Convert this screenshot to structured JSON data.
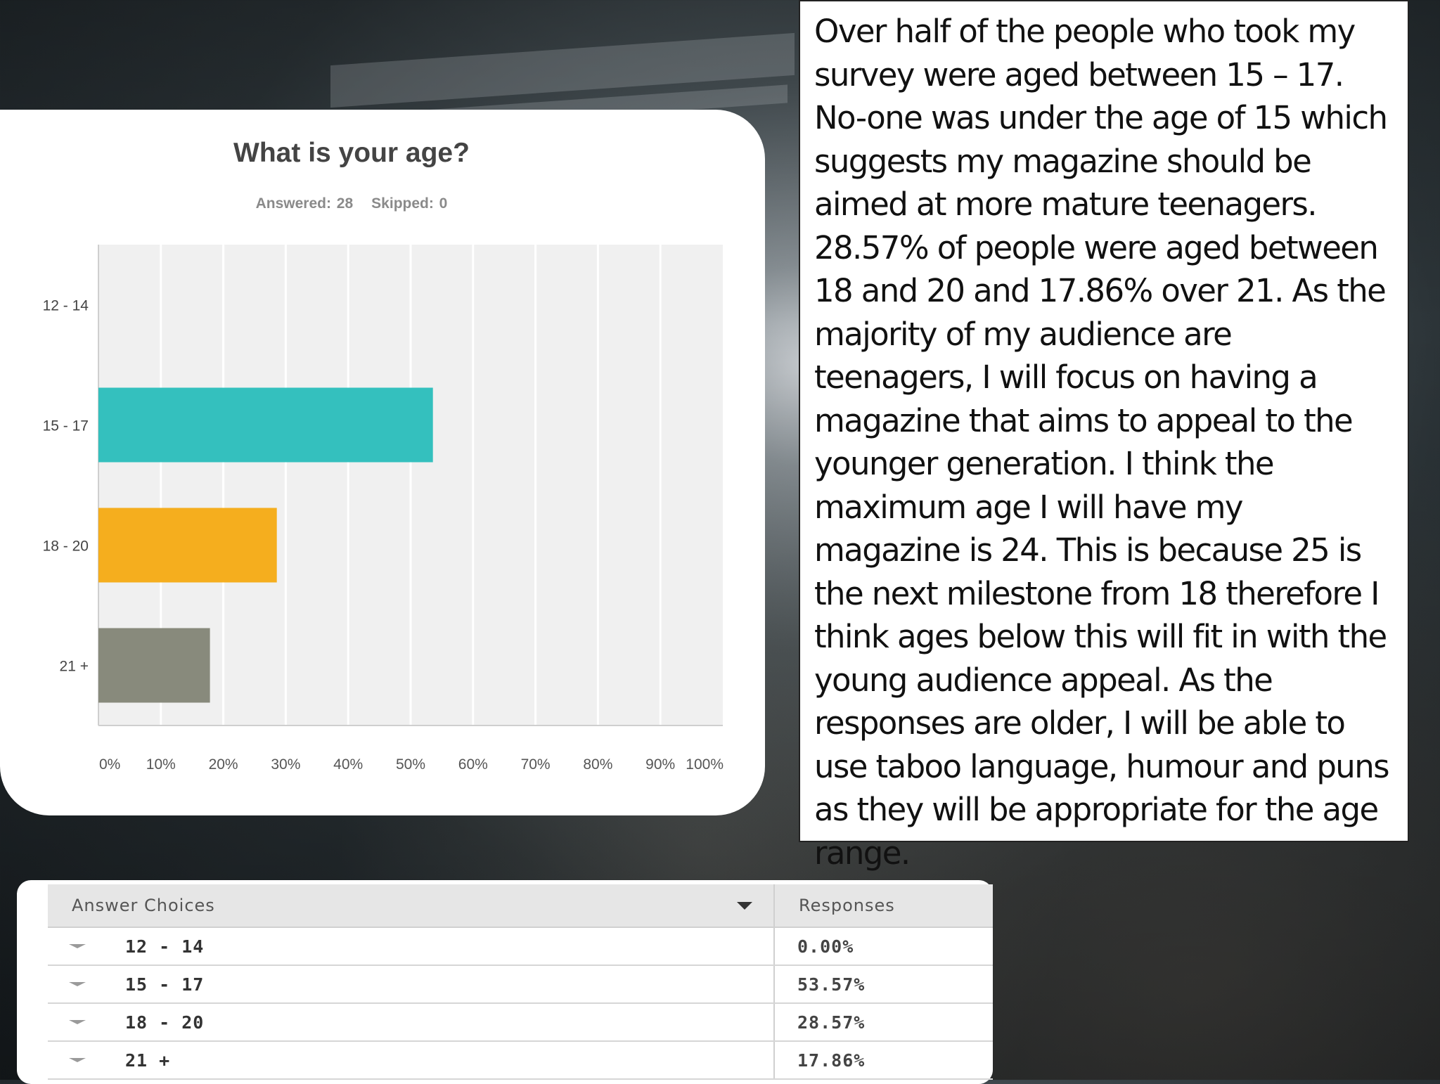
{
  "chart_data": {
    "type": "bar",
    "orientation": "horizontal",
    "title": "What is your age?",
    "subtitle": {
      "answered": "Answered: 28",
      "skipped": "Skipped: 0"
    },
    "categories": [
      "12 - 14",
      "15 - 17",
      "18 - 20",
      "21 +"
    ],
    "values": [
      0.0,
      53.57,
      28.57,
      17.86
    ],
    "colors": [
      "#34c0be",
      "#34c0be",
      "#f5ae1e",
      "#888a7c"
    ],
    "xlim": [
      0,
      100
    ],
    "x_ticks": [
      "0%",
      "10%",
      "20%",
      "30%",
      "40%",
      "50%",
      "60%",
      "70%",
      "80%",
      "90%",
      "100%"
    ],
    "grid": true
  },
  "text_box": {
    "body": "Over half of the people who took my survey were aged between 15 – 17. No-one was under the age of 15 which suggests my magazine should be aimed at more mature teenagers. 28.57% of people were  aged between 18 and 20 and 17.86% over 21. As the majority of my audience are teenagers, I will focus on having a magazine that aims to appeal to the younger generation. I think the maximum age I will have my magazine is 24. This is because 25 is the next milestone from 18 therefore I think ages below this will fit in with the young audience appeal. As the responses are older, I will be able to use taboo language, humour and puns as they will be appropriate for the age range."
  },
  "table": {
    "header_choices": "Answer Choices",
    "header_responses": "Responses",
    "rows": [
      {
        "choice": "12 - 14",
        "response": "0.00%"
      },
      {
        "choice": "15 - 17",
        "response": "53.57%"
      },
      {
        "choice": "18 - 20",
        "response": "28.57%"
      },
      {
        "choice": "21 +",
        "response": "17.86%"
      }
    ]
  }
}
